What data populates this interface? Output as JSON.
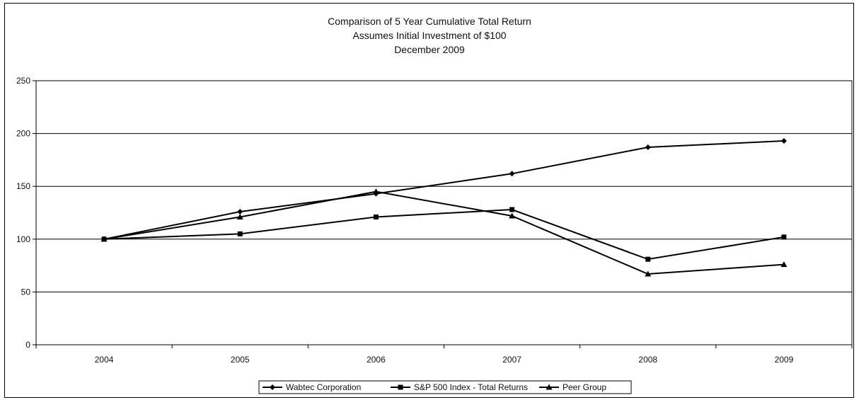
{
  "chart_data": {
    "type": "line",
    "title": "Comparison of 5 Year Cumulative Total Return",
    "subtitle": "Assumes Initial Investment of $100",
    "subtitle2": "December 2009",
    "xlabel": "",
    "ylabel": "",
    "ylim": [
      0,
      250
    ],
    "yticks": [
      "0",
      "50",
      "100",
      "150",
      "200",
      "250"
    ],
    "categories": [
      "2004",
      "2005",
      "2006",
      "2007",
      "2008",
      "2009"
    ],
    "grid": "horizontal",
    "legend_position": "bottom",
    "series": [
      {
        "name": "Wabtec Corporation",
        "marker": "diamond",
        "color": "#000000",
        "values": [
          100,
          126,
          143,
          162,
          187,
          193
        ]
      },
      {
        "name": "S&P 500 Index - Total Returns",
        "marker": "square",
        "color": "#000000",
        "values": [
          100,
          105,
          121,
          128,
          81,
          102
        ]
      },
      {
        "name": "Peer Group",
        "marker": "triangle",
        "color": "#000000",
        "values": [
          100,
          121,
          145,
          122,
          67,
          76
        ]
      }
    ]
  }
}
